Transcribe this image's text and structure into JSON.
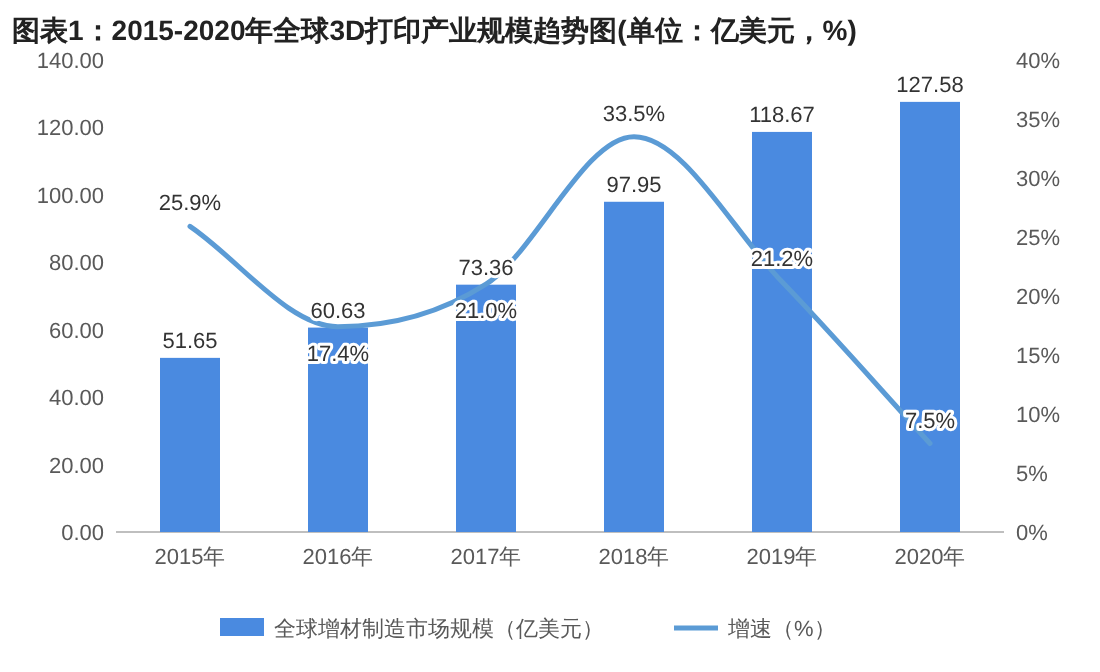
{
  "chart_data": {
    "type": "bar",
    "title": "图表1：2015-2020年全球3D打印产业规模趋势图(单位：亿美元，%)",
    "categories": [
      "2015年",
      "2016年",
      "2017年",
      "2018年",
      "2019年",
      "2020年"
    ],
    "series": [
      {
        "name": "全球增材制造市场规模（亿美元）",
        "color": "#4a8ae0",
        "values": [
          51.65,
          60.63,
          73.36,
          97.95,
          118.67,
          127.58
        ],
        "value_labels": [
          "51.65",
          "60.63",
          "73.36",
          "97.95",
          "118.67",
          "127.58"
        ]
      },
      {
        "name": "增速（%）",
        "type": "line",
        "axis": "y2",
        "color": "#5b9bd5",
        "values": [
          25.9,
          17.4,
          21.0,
          33.5,
          21.2,
          7.5
        ],
        "value_labels": [
          "25.9%",
          "17.4%",
          "21.0%",
          "33.5%",
          "21.2%",
          "7.5%"
        ]
      }
    ],
    "ylim": [
      0,
      140
    ],
    "yticks": [
      {
        "value": 0,
        "label": "0.00"
      },
      {
        "value": 20,
        "label": "20.00"
      },
      {
        "value": 40,
        "label": "40.00"
      },
      {
        "value": 60,
        "label": "60.00"
      },
      {
        "value": 80,
        "label": "80.00"
      },
      {
        "value": 100,
        "label": "100.00"
      },
      {
        "value": 120,
        "label": "120.00"
      },
      {
        "value": 140,
        "label": "140.00"
      }
    ],
    "y2lim": [
      0,
      40
    ],
    "y2ticks": [
      {
        "value": 0,
        "label": "0%"
      },
      {
        "value": 5,
        "label": "5%"
      },
      {
        "value": 10,
        "label": "10%"
      },
      {
        "value": 15,
        "label": "15%"
      },
      {
        "value": 20,
        "label": "20%"
      },
      {
        "value": 25,
        "label": "25%"
      },
      {
        "value": 30,
        "label": "30%"
      },
      {
        "value": 35,
        "label": "35%"
      },
      {
        "value": 40,
        "label": "40%"
      }
    ],
    "legend": "bottom"
  }
}
